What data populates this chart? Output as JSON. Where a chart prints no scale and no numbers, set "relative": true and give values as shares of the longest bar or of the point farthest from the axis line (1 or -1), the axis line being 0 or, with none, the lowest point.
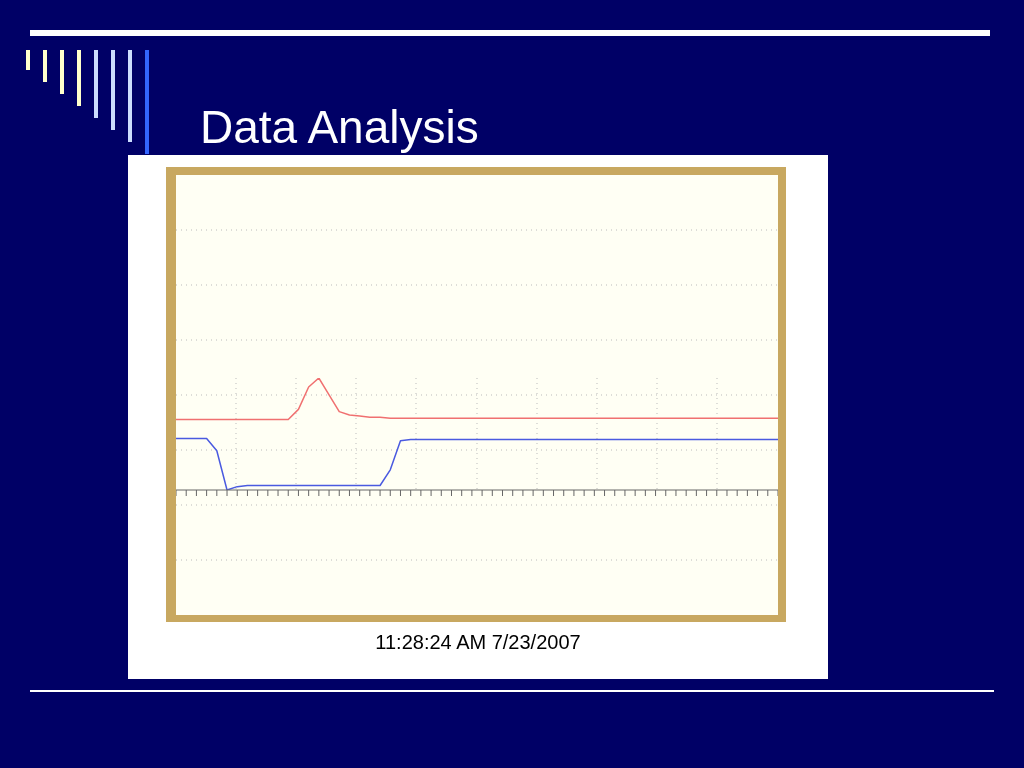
{
  "chart_data": {
    "type": "line",
    "title": "Data Analysis",
    "relative": true,
    "grid": true,
    "marker": "none",
    "categories": [
      null,
      null,
      null,
      null,
      null,
      null,
      null,
      null,
      null,
      null,
      null,
      null,
      null,
      null,
      null,
      null,
      null,
      null,
      null,
      null,
      null,
      null,
      null,
      null,
      null,
      null,
      null,
      null,
      null,
      null,
      null,
      null,
      null,
      null,
      null,
      null,
      null,
      null,
      null,
      null,
      null,
      null,
      null,
      null,
      null,
      null,
      null,
      null,
      null,
      null,
      null,
      null,
      null,
      null,
      null,
      null,
      null,
      null,
      null,
      null
    ],
    "series": [
      {
        "color": "#f07070",
        "values": [
          0.63,
          0.63,
          0.63,
          0.63,
          0.63,
          0.63,
          0.63,
          0.63,
          0.63,
          0.63,
          0.63,
          0.63,
          0.72,
          0.92,
          1,
          0.85,
          0.7,
          0.67,
          0.66,
          0.65,
          0.65,
          0.64,
          0.64,
          0.64,
          0.64,
          0.64,
          0.64,
          0.64,
          0.64,
          0.64,
          0.64,
          0.64,
          0.64,
          0.64,
          0.64,
          0.64,
          0.64,
          0.64,
          0.64,
          0.64,
          0.64,
          0.64,
          0.64,
          0.64,
          0.64,
          0.64,
          0.64,
          0.64,
          0.64,
          0.64,
          0.64,
          0.64,
          0.64,
          0.64,
          0.64,
          0.64,
          0.64,
          0.64,
          0.64,
          0.64
        ]
      },
      {
        "color": "#4a5ae0",
        "values": [
          0.46,
          0.46,
          0.46,
          0.46,
          0.35,
          0,
          0.03,
          0.04,
          0.04,
          0.04,
          0.04,
          0.04,
          0.04,
          0.04,
          0.04,
          0.04,
          0.04,
          0.04,
          0.04,
          0.04,
          0.04,
          0.18,
          0.44,
          0.45,
          0.45,
          0.45,
          0.45,
          0.45,
          0.45,
          0.45,
          0.45,
          0.45,
          0.45,
          0.45,
          0.45,
          0.45,
          0.45,
          0.45,
          0.45,
          0.45,
          0.45,
          0.45,
          0.45,
          0.45,
          0.45,
          0.45,
          0.45,
          0.45,
          0.45,
          0.45,
          0.45,
          0.45,
          0.45,
          0.45,
          0.45,
          0.45,
          0.45,
          0.45,
          0.45,
          0.45
        ]
      }
    ],
    "annotations": [
      "11:28:24 AM 7/23/2007"
    ]
  }
}
